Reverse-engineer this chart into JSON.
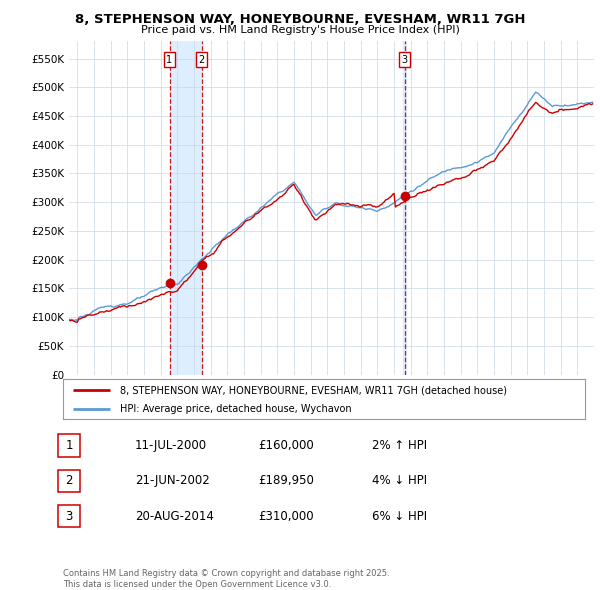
{
  "title_line1": "8, STEPHENSON WAY, HONEYBOURNE, EVESHAM, WR11 7GH",
  "title_line2": "Price paid vs. HM Land Registry's House Price Index (HPI)",
  "ylim": [
    0,
    580000
  ],
  "yticks": [
    0,
    50000,
    100000,
    150000,
    200000,
    250000,
    300000,
    350000,
    400000,
    450000,
    500000,
    550000
  ],
  "ytick_labels": [
    "£0",
    "£50K",
    "£100K",
    "£150K",
    "£200K",
    "£250K",
    "£300K",
    "£350K",
    "£400K",
    "£450K",
    "£500K",
    "£550K"
  ],
  "hpi_color": "#5b9bd5",
  "price_color": "#cc0000",
  "marker_color": "#cc0000",
  "transaction_dates": [
    2000.53,
    2002.47,
    2014.64
  ],
  "transaction_prices": [
    160000,
    189950,
    310000
  ],
  "transaction_labels": [
    "1",
    "2",
    "3"
  ],
  "shade_color": "#ddeeff",
  "legend_house_label": "8, STEPHENSON WAY, HONEYBOURNE, EVESHAM, WR11 7GH (detached house)",
  "legend_hpi_label": "HPI: Average price, detached house, Wychavon",
  "table_rows": [
    [
      "1",
      "11-JUL-2000",
      "£160,000",
      "2% ↑ HPI"
    ],
    [
      "2",
      "21-JUN-2002",
      "£189,950",
      "4% ↓ HPI"
    ],
    [
      "3",
      "20-AUG-2014",
      "£310,000",
      "6% ↓ HPI"
    ]
  ],
  "footer_text": "Contains HM Land Registry data © Crown copyright and database right 2025.\nThis data is licensed under the Open Government Licence v3.0.",
  "bg_color": "#ffffff",
  "grid_color": "#c8d8e8",
  "xlim_start": 1994.5,
  "xlim_end": 2026.0
}
